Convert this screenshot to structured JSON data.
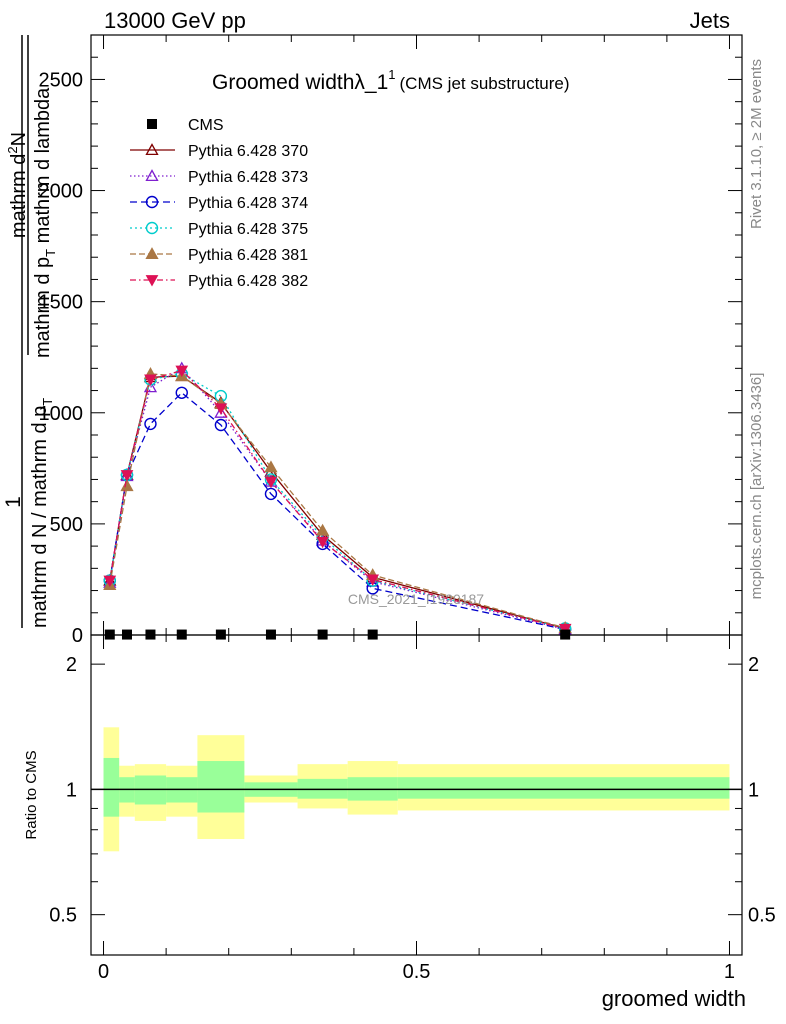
{
  "header": {
    "energy": "13000 GeV pp",
    "process": "Jets"
  },
  "side_labels": {
    "rivet": "Rivet 3.1.10, ≥ 2M events",
    "mcplots": "mcplots.cern.ch [arXiv:1306.3436]"
  },
  "chart_data": {
    "type": "line",
    "title_main": "Groomed widthλ_1",
    "title_sup": "1",
    "title_sub": "(CMS jet substructure)",
    "watermark": "CMS_2021_I1920187",
    "ylabel_num": "1",
    "ylabel_den": "mathrm d N / mathrm d p",
    "ylabel_den_sub": "T",
    "ylabel_num_right": "mathrm d",
    "ylabel_num_sup": "2",
    "ylabel_num_tail": "N",
    "ylabel_den_right": "mathrm d p",
    "ylabel_den_right_sub": "T",
    "ylabel_den_right_tail": " mathrm d lambda",
    "xlabel": "groomed width",
    "ratio_ylabel": "Ratio to CMS",
    "xlim": [
      -0.02,
      1.02
    ],
    "ylim": [
      0,
      2700
    ],
    "ratio_ylim": [
      0.4,
      2.35
    ],
    "x_ticks": [
      0,
      0.5,
      1
    ],
    "x_tick_labels": [
      "0",
      "0.5",
      "1"
    ],
    "y_ticks": [
      0,
      500,
      1000,
      1500,
      2000,
      2500
    ],
    "y_tick_labels": [
      "0",
      "500",
      "1000",
      "1500",
      "2000",
      "2500"
    ],
    "ratio_ticks": [
      0.5,
      1,
      2
    ],
    "ratio_tick_labels": [
      "0.5",
      "1",
      "2"
    ],
    "x": [
      0.01,
      0.0375,
      0.075,
      0.125,
      0.1875,
      0.2675,
      0.35,
      0.43,
      0.7375
    ],
    "cms": {
      "name": "CMS",
      "color": "#000000",
      "values": [
        2,
        2,
        2,
        2,
        2,
        2,
        2,
        2,
        2
      ]
    },
    "ratio_bands": [
      {
        "x0": 0.0,
        "x1": 0.025,
        "y0": 0.71,
        "y1": 1.41,
        "g0": 0.86,
        "g1": 1.19
      },
      {
        "x0": 0.025,
        "x1": 0.05,
        "y0": 0.86,
        "y1": 1.14,
        "g0": 0.93,
        "g1": 1.07
      },
      {
        "x0": 0.05,
        "x1": 0.1,
        "y0": 0.84,
        "y1": 1.15,
        "g0": 0.92,
        "g1": 1.08
      },
      {
        "x0": 0.1,
        "x1": 0.15,
        "y0": 0.86,
        "y1": 1.14,
        "g0": 0.93,
        "g1": 1.07
      },
      {
        "x0": 0.15,
        "x1": 0.225,
        "y0": 0.76,
        "y1": 1.35,
        "g0": 0.88,
        "g1": 1.17
      },
      {
        "x0": 0.225,
        "x1": 0.31,
        "y0": 0.93,
        "y1": 1.08,
        "g0": 0.96,
        "g1": 1.04
      },
      {
        "x0": 0.31,
        "x1": 0.39,
        "y0": 0.9,
        "y1": 1.15,
        "g0": 0.95,
        "g1": 1.06
      },
      {
        "x0": 0.39,
        "x1": 0.47,
        "y0": 0.87,
        "y1": 1.17,
        "g0": 0.94,
        "g1": 1.07
      },
      {
        "x0": 0.47,
        "x1": 1.0,
        "y0": 0.89,
        "y1": 1.15,
        "g0": 0.95,
        "g1": 1.07
      }
    ],
    "band_colors": {
      "outer": "#ffff99",
      "inner": "#99ff99"
    },
    "series": [
      {
        "name": "Pythia 6.428 370",
        "color": "#7f0000",
        "dash": "",
        "marker": "triangle-open",
        "values": [
          245,
          720,
          1160,
          1165,
          1045,
          735,
          450,
          260,
          30
        ]
      },
      {
        "name": "Pythia 6.428 373",
        "color": "#7f1fcf",
        "dash": "1.5,2.5",
        "marker": "triangle-open",
        "values": [
          235,
          715,
          1115,
          1200,
          1000,
          690,
          425,
          240,
          25
        ]
      },
      {
        "name": "Pythia 6.428 374",
        "color": "#0000cc",
        "dash": "7,4",
        "marker": "circle-open",
        "values": [
          245,
          720,
          950,
          1090,
          945,
          635,
          410,
          210,
          25
        ]
      },
      {
        "name": "Pythia 6.428 375",
        "color": "#00cccc",
        "dash": "2,3",
        "marker": "circle-open",
        "values": [
          245,
          720,
          1150,
          1175,
          1075,
          700,
          440,
          245,
          30
        ]
      },
      {
        "name": "Pythia 6.428 381",
        "color": "#aa7744",
        "dash": "6,3",
        "marker": "triangle-filled",
        "values": [
          225,
          670,
          1175,
          1165,
          1040,
          755,
          470,
          270,
          32
        ]
      },
      {
        "name": "Pythia 6.428 382",
        "color": "#dd1155",
        "dash": "6,3,1.5,3",
        "marker": "triangle-down-filled",
        "values": [
          245,
          720,
          1150,
          1190,
          1020,
          690,
          420,
          250,
          28
        ]
      }
    ]
  }
}
